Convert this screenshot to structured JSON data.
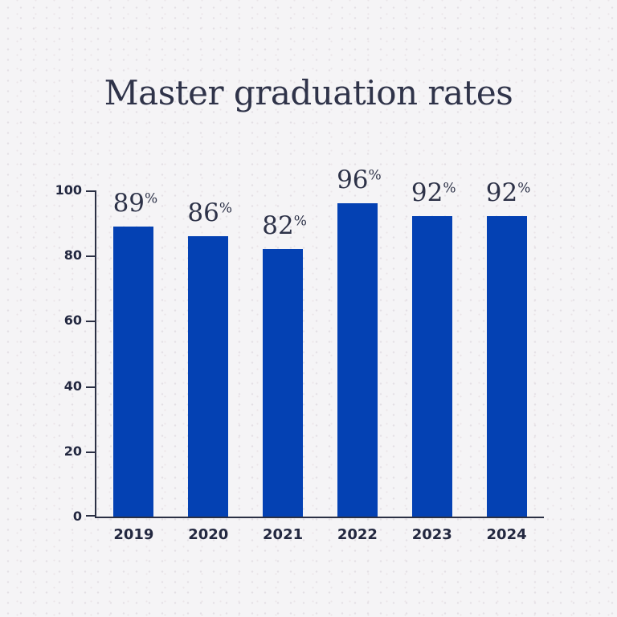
{
  "title": "Master graduation rates",
  "colors": {
    "background": "#f5f4f6",
    "dot_texture": "#e4e0e5",
    "bar": "#0441b3",
    "title_text": "#2f3349",
    "value_label_text": "#2d3248",
    "axis_text": "#232840",
    "axis_line": "#2b3044"
  },
  "chart_data": {
    "type": "bar",
    "title": "Master graduation rates",
    "categories": [
      "2019",
      "2020",
      "2021",
      "2022",
      "2023",
      "2024"
    ],
    "values": [
      89,
      86,
      82,
      96,
      92,
      92
    ],
    "value_labels": [
      "89%",
      "86%",
      "82%",
      "96%",
      "92%",
      "92%"
    ],
    "value_suffix": "%",
    "xlabel": "",
    "ylabel": "",
    "ylim": [
      0,
      100
    ],
    "yticks": [
      0,
      20,
      40,
      60,
      80,
      100
    ],
    "grid": false,
    "legend_position": "none",
    "bar_color": "#0441b3"
  }
}
